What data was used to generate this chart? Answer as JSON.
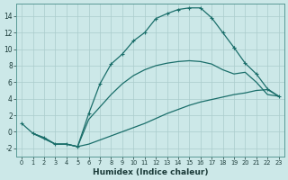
{
  "xlabel": "Humidex (Indice chaleur)",
  "bg_color": "#cce8e8",
  "grid_color": "#aacccc",
  "line_color": "#1a6e6a",
  "xlim": [
    -0.5,
    23.5
  ],
  "ylim": [
    -3,
    15.5
  ],
  "xticks": [
    0,
    1,
    2,
    3,
    4,
    5,
    6,
    7,
    8,
    9,
    10,
    11,
    12,
    13,
    14,
    15,
    16,
    17,
    18,
    19,
    20,
    21,
    22,
    23
  ],
  "yticks": [
    -2,
    0,
    2,
    4,
    6,
    8,
    10,
    12,
    14
  ],
  "line1_x": [
    0,
    1,
    2,
    3,
    4,
    5,
    6,
    7,
    8,
    9,
    10,
    11,
    12,
    13,
    14,
    15,
    16,
    17,
    18,
    19
  ],
  "line1_y": [
    1,
    -0.2,
    -0.7,
    -1.5,
    -1.5,
    -1.8,
    2.2,
    5.8,
    8.2,
    9.4,
    11.0,
    12.0,
    13.7,
    14.3,
    14.8,
    15.0,
    15.0,
    13.8,
    12.0,
    10.2
  ],
  "line2_x": [
    19,
    20,
    21,
    22,
    23
  ],
  "line2_y": [
    10.2,
    8.3,
    7.0,
    5.2,
    4.3
  ],
  "line3_x": [
    1,
    2,
    3,
    4,
    5,
    6,
    7,
    8,
    9,
    10,
    11,
    12,
    13,
    14,
    15,
    16,
    17,
    18,
    19,
    20,
    21,
    22,
    23
  ],
  "line3_y": [
    -0.2,
    -0.8,
    -1.5,
    -1.5,
    -1.8,
    1.5,
    3.0,
    4.5,
    5.8,
    6.8,
    7.5,
    8.0,
    8.3,
    8.5,
    8.6,
    8.5,
    8.2,
    7.5,
    7.0,
    7.2,
    6.0,
    4.5,
    4.3
  ],
  "line4_x": [
    1,
    3,
    4,
    5,
    6,
    7,
    8,
    9,
    10,
    11,
    12,
    13,
    14,
    15,
    16,
    17,
    18,
    19,
    20,
    21,
    22,
    23
  ],
  "line4_y": [
    -0.2,
    -1.5,
    -1.5,
    -1.8,
    -1.5,
    -1.0,
    -0.5,
    0.0,
    0.5,
    1.0,
    1.6,
    2.2,
    2.7,
    3.2,
    3.6,
    3.9,
    4.2,
    4.5,
    4.7,
    5.0,
    5.1,
    4.3
  ]
}
